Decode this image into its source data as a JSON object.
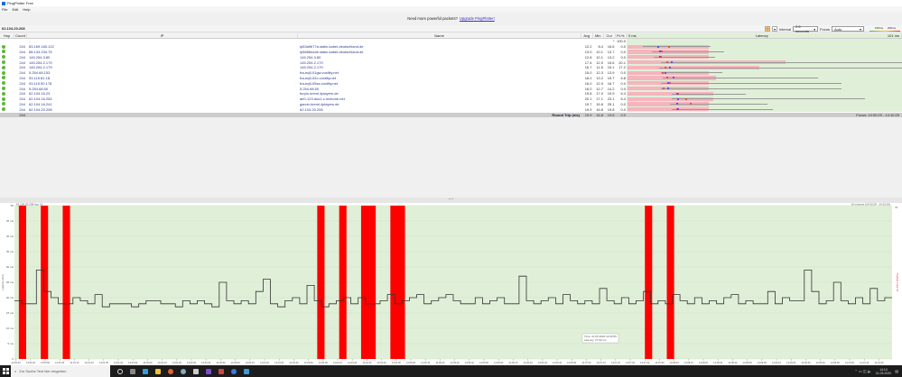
{
  "window": {
    "title": "PingPlotter Free"
  },
  "menu": [
    "File",
    "Edit",
    "Help"
  ],
  "banner": {
    "text": "Need more powerful packets?",
    "link": "Upgrade PingPlotter!"
  },
  "target": "62.104.20.208",
  "toolbar": {
    "interval_label": "Interval",
    "interval_value": "2.5 seconds",
    "focus_label": "Focus",
    "focus_value": "Auto",
    "scale_100": "100ms",
    "scale_200": "200ms"
  },
  "table": {
    "headers": {
      "hop": "Hop",
      "count": "Count",
      "ip": "IP",
      "name": "Name",
      "avg": "Avg",
      "min": "Min",
      "cur": "Cur",
      "pl": "PL%",
      "lat_start": "0 ms",
      "latency": "Latency",
      "lat_end": "101 ms"
    },
    "rows": [
      {
        "hop": "1",
        "count": "",
        "ip": "-",
        "name": "",
        "avg": "",
        "min": "",
        "cur": "*",
        "pl": "100.0"
      },
      {
        "hop": "2",
        "count": "244",
        "ip": "83.169.183.122",
        "name": "ip53a9b77a.static.kabel-deutschland.de",
        "avg": "12.2",
        "min": "8.4",
        "cur": "16.6",
        "pl": "0.0"
      },
      {
        "hop": "3",
        "count": "244",
        "ip": "88.134.234.75",
        "name": "ip5886ea4b.static.kabel-deutschland.de",
        "avg": "13.0",
        "min": "10.1",
        "cur": "13.7",
        "pl": "0.0"
      },
      {
        "hop": "4",
        "count": "244",
        "ip": "145.254.3.80",
        "name": "145.254.3.80",
        "avg": "12.8",
        "min": "10.1",
        "cur": "13.2",
        "pl": "0.0"
      },
      {
        "hop": "5",
        "count": "244",
        "ip": "145.254.2.179",
        "name": "145.254.2.179",
        "avg": "17.4",
        "min": "12.9",
        "cur": "15.6",
        "pl": "20.1"
      },
      {
        "hop": "6",
        "count": "244",
        "ip": "145.254.2.179",
        "name": "145.254.2.179",
        "avg": "16.7",
        "min": "11.5",
        "cur": "15.1",
        "pl": "17.2"
      },
      {
        "hop": "7",
        "count": "244",
        "ip": "5.254.68.153",
        "name": "fra-eq5-01gw.voxility.net",
        "avg": "15.0",
        "min": "12.3",
        "cur": "13.9",
        "pl": "0.0"
      },
      {
        "hop": "8",
        "count": "244",
        "ip": "93.115.81.18",
        "name": "fra-eq5-02c.voxility.net",
        "avg": "18.2",
        "min": "13.2",
        "cur": "15.7",
        "pl": "6.8"
      },
      {
        "hop": "9",
        "count": "244",
        "ip": "93.115.90.178",
        "name": "fra-eq5-05ss.voxility.net",
        "avg": "16.0",
        "min": "12.9",
        "cur": "16.7",
        "pl": "0.0"
      },
      {
        "hop": "10",
        "count": "244",
        "ip": "5.254.68.50",
        "name": "5.254.68.50",
        "avg": "16.0",
        "min": "12.7",
        "cur": "14.2",
        "pl": "0.0"
      },
      {
        "hop": "11",
        "count": "244",
        "ip": "62.104.16.23",
        "name": "turpin.kreml.4players.de",
        "avg": "19.8",
        "min": "17.0",
        "cur": "19.9",
        "pl": "6.4"
      },
      {
        "hop": "12",
        "count": "244",
        "ip": "62.104.16.254",
        "name": "ae0-123.dus1-c.mcbone.net",
        "avg": "20.1",
        "min": "17.1",
        "cur": "23.1",
        "pl": "6.4"
      },
      {
        "hop": "13",
        "count": "244",
        "ip": "62.104.16.241",
        "name": "garvin.kreml.4players.de",
        "avg": "19.7",
        "min": "15.8",
        "cur": "25.1",
        "pl": "0.0"
      },
      {
        "hop": "14",
        "count": "244",
        "ip": "62.104.20.208",
        "name": "62.104.20.208",
        "avg": "19.9",
        "min": "16.8",
        "cur": "19.8",
        "pl": "0.0"
      }
    ],
    "summary": {
      "count": "244",
      "label": "Round Trip (ms)",
      "avg": "19.9",
      "min": "16.8",
      "cur": "19.8",
      "pl": "0.0",
      "focus": "Focus: 14:00:29 - 14:10:29"
    }
  },
  "colors": {
    "accent": "#ff0000",
    "chart_bg": "#e0f0d8",
    "row_bar": "#f5b5bd",
    "hop_ok": "#5cb83c"
  },
  "chart_data": {
    "type": "line",
    "title": "62.104.20.208 hop 14",
    "range_label": "10 minutes (14:00:29 - 14:10:29)",
    "ylabel": "Latency (ms)",
    "y2label": "Packet Loss %",
    "y2_max": "30",
    "ylim": [
      0,
      50
    ],
    "yticks": [
      "0",
      "5 ms",
      "10 ms",
      "15 ms",
      "20 ms",
      "25 ms",
      "30 ms",
      "35 ms",
      "40 ms",
      "45 ms",
      "50"
    ],
    "xticks": [
      "14:00:30",
      "14:00:40",
      "14:00:50",
      "14:01:00",
      "14:01:10",
      "14:01:20",
      "14:01:30",
      "14:01:40",
      "14:01:50",
      "14:02:00",
      "14:02:10",
      "14:02:20",
      "14:02:30",
      "14:02:40",
      "14:02:50",
      "14:03:00",
      "14:03:10",
      "14:03:20",
      "14:03:30",
      "14:03:40",
      "14:03:50",
      "14:04:00",
      "14:04:10",
      "14:04:20",
      "14:04:30",
      "14:04:40",
      "14:04:50",
      "14:05:00",
      "14:05:10",
      "14:05:20",
      "14:05:30",
      "14:05:40",
      "14:05:50",
      "14:06:00",
      "14:06:10",
      "14:06:20",
      "14:06:30",
      "14:06:40",
      "14:06:50",
      "14:07:00",
      "14:07:10",
      "14:07:20",
      "14:07:30",
      "14:07:40",
      "14:07:50",
      "14:08:00",
      "14:08:10",
      "14:08:20",
      "14:08:30",
      "14:08:40",
      "14:08:50",
      "14:09:00",
      "14:09:10",
      "14:09:20",
      "14:09:30",
      "14:09:40",
      "14:09:50",
      "14:10:00",
      "14:10:10",
      "14:10:20"
    ],
    "interval_s": 5,
    "latency_ms": [
      19,
      18,
      18,
      29,
      22,
      20,
      18,
      18,
      20,
      19,
      18,
      21,
      17,
      18,
      18,
      18,
      17,
      18,
      19,
      19,
      18,
      18,
      17,
      19,
      18,
      19,
      18,
      17,
      25,
      19,
      18,
      19,
      18,
      22,
      26,
      18,
      17,
      19,
      20,
      18,
      24,
      19,
      17,
      18,
      19,
      20,
      18,
      20,
      18,
      18,
      19,
      21,
      18,
      19,
      20,
      21,
      18,
      19,
      20,
      21,
      19,
      18,
      18,
      20,
      18,
      19,
      20,
      18,
      18,
      27,
      19,
      18,
      19,
      20,
      18,
      21,
      19,
      18,
      19,
      18,
      23,
      19,
      18,
      20,
      18,
      19,
      22,
      18,
      19,
      18,
      21,
      19,
      18,
      20,
      18,
      19,
      18,
      20,
      21,
      18,
      19,
      18,
      18,
      22,
      18,
      20,
      19,
      19,
      29,
      22,
      18,
      19,
      25,
      19,
      18,
      20,
      18,
      23,
      19,
      20
    ],
    "packet_loss_intervals": [
      [
        "14:00:32",
        "14:00:37"
      ],
      [
        "14:00:47",
        "14:00:52"
      ],
      [
        "14:01:02",
        "14:01:07"
      ],
      [
        "14:03:56",
        "14:04:01"
      ],
      [
        "14:04:11",
        "14:04:16"
      ],
      [
        "14:04:26",
        "14:04:36"
      ],
      [
        "14:04:46",
        "14:04:56"
      ],
      [
        "14:07:40",
        "14:07:45"
      ],
      [
        "14:07:55",
        "14:08:00"
      ]
    ],
    "tooltip": {
      "time": "Time: 21.05.2020 14:06:55",
      "latency": "Latency: 27.02 ms"
    }
  },
  "taskbar": {
    "search_placeholder": "Zur Suche Text hier eingeben",
    "time": "14:10",
    "date": "21.05.2020"
  }
}
